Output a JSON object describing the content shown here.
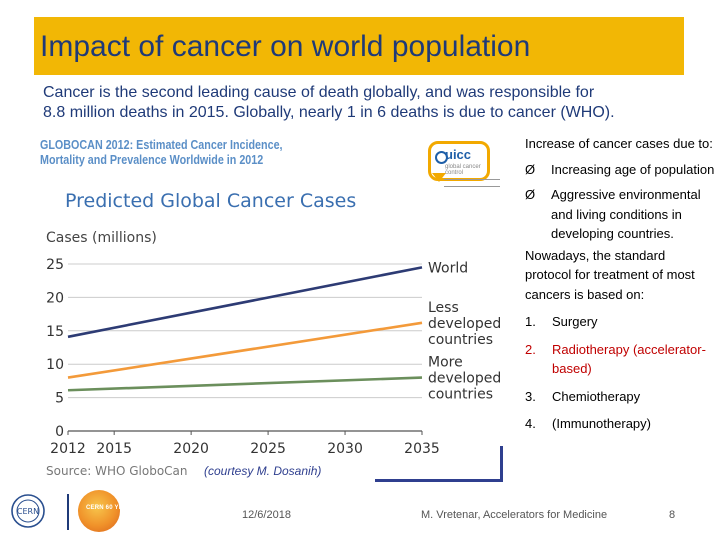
{
  "slide": {
    "title": "Impact of cancer on world population",
    "intro_line1": "Cancer is the second leading cause of death globally, and was responsible for",
    "intro_line2": "8.8 million deaths in 2015. Globally, nearly 1 in 6 deaths is due to cancer (WHO).",
    "globocan_line1": "GLOBOCAN 2012: Estimated Cancer Incidence,",
    "globocan_line2": "Mortality and Prevalence Worldwide in 2012",
    "uicc_logo_text": "uicc",
    "uicc_logo_subtext": "global cancer control",
    "courtesy": "(courtesy M. Dosanih)",
    "footer": {
      "date": "12/6/2018",
      "author": "M. Vretenar, Accelerators for Medicine",
      "page": "8",
      "anniversary_logo_text": "CERN 60 YEARS"
    },
    "right_column": {
      "increase_intro": "Increase of cancer cases due to:",
      "arrow_glyph": "Ø",
      "causes": [
        "Increasing age of population",
        "Aggressive environmental and living conditions in developing countries."
      ],
      "protocol_intro": "Nowadays, the standard protocol for treatment of most cancers is based on:",
      "treatments": [
        {
          "num": "1.",
          "label": "Surgery",
          "highlight": false
        },
        {
          "num": "2.",
          "label": "Radiotherapy (accelerator-based)",
          "highlight": true
        },
        {
          "num": "3.",
          "label": "Chemiotherapy",
          "highlight": false
        },
        {
          "num": "4.",
          "label": "(Immunotherapy)",
          "highlight": false
        }
      ]
    },
    "colors": {
      "title_bar": "#f2b705",
      "title_text": "#1f3a78",
      "world": "#2d3b74",
      "less_developed": "#f39a3a",
      "more_developed": "#6b8f5c",
      "radiotherapy": "#c00000"
    }
  },
  "chart_data": {
    "type": "line",
    "title": "Predicted Global Cancer Cases",
    "ylabel": "Cases (millions)",
    "source": "Source: WHO GloboCan",
    "x_ticks": [
      "2012",
      "2015",
      "2020",
      "2025",
      "2030",
      "2035"
    ],
    "x_tick_values": [
      2012,
      2015,
      2020,
      2025,
      2030,
      2035
    ],
    "y_ticks": [
      "0",
      "5",
      "10",
      "15",
      "20",
      "25"
    ],
    "y_tick_values": [
      0,
      5,
      10,
      15,
      20,
      25
    ],
    "xlim": [
      2012,
      2035
    ],
    "ylim": [
      0,
      25
    ],
    "grid": true,
    "series": [
      {
        "name": "World",
        "label_lines": [
          "World"
        ],
        "x": [
          2012,
          2035
        ],
        "values": [
          14.1,
          24.5
        ]
      },
      {
        "name": "Less developed countries",
        "label_lines": [
          "Less",
          "developed",
          "countries"
        ],
        "x": [
          2012,
          2035
        ],
        "values": [
          8.0,
          16.2
        ]
      },
      {
        "name": "More developed countries",
        "label_lines": [
          "More",
          "developed",
          "countries"
        ],
        "x": [
          2012,
          2035
        ],
        "values": [
          6.1,
          8.0
        ]
      }
    ]
  }
}
